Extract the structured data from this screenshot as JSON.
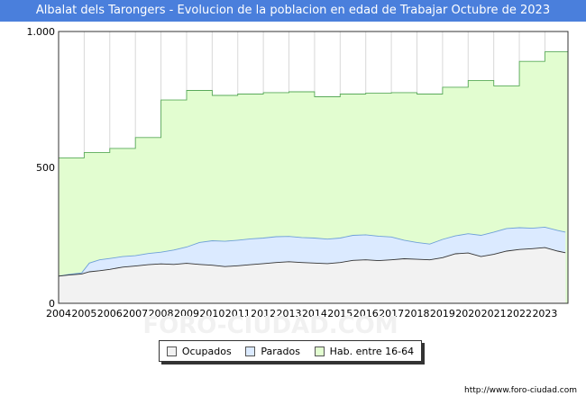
{
  "header": {
    "title": "Albalat dels Tarongers - Evolucion de la poblacion en edad de Trabajar Octubre de 2023"
  },
  "chart_data": {
    "type": "area",
    "title": "Albalat dels Tarongers - Evolucion de la poblacion en edad de Trabajar Octubre de 2023",
    "x_range": [
      2004,
      2023.9
    ],
    "ylim": [
      0,
      1000
    ],
    "y_ticks": [
      0,
      500,
      1000
    ],
    "y_tick_labels": [
      "0",
      "500",
      "1.000"
    ],
    "x_tick_labels": [
      "2004",
      "2005",
      "2006",
      "2007",
      "2008",
      "2009",
      "2010",
      "2011",
      "2012",
      "2013",
      "2014",
      "2015",
      "2016",
      "2017",
      "2018",
      "2019",
      "2020",
      "2021",
      "2022",
      "2023"
    ],
    "grid": true,
    "legend_position": "bottom",
    "series": [
      {
        "name": "Hab. entre 16-64",
        "color": "#e2fdd0",
        "stroke": "#5aaa5a",
        "annual": [
          535,
          555,
          570,
          610,
          748,
          783,
          765,
          770,
          775,
          778,
          760,
          770,
          773,
          775,
          770,
          795,
          820,
          800,
          890,
          925
        ]
      },
      {
        "name": "Parados",
        "color": "#dbeaff",
        "stroke": "#6fa0d8",
        "points": [
          [
            2004.0,
            100
          ],
          [
            2004.4,
            106
          ],
          [
            2004.9,
            112
          ],
          [
            2005.2,
            148
          ],
          [
            2005.6,
            160
          ],
          [
            2006.0,
            165
          ],
          [
            2006.5,
            172
          ],
          [
            2007.0,
            175
          ],
          [
            2007.5,
            183
          ],
          [
            2008.0,
            188
          ],
          [
            2008.5,
            196
          ],
          [
            2009.0,
            207
          ],
          [
            2009.5,
            224
          ],
          [
            2010.0,
            230
          ],
          [
            2010.5,
            228
          ],
          [
            2011.0,
            232
          ],
          [
            2011.5,
            237
          ],
          [
            2012.0,
            240
          ],
          [
            2012.5,
            245
          ],
          [
            2013.0,
            246
          ],
          [
            2013.5,
            242
          ],
          [
            2014.0,
            240
          ],
          [
            2014.5,
            236
          ],
          [
            2015.0,
            240
          ],
          [
            2015.5,
            250
          ],
          [
            2016.0,
            252
          ],
          [
            2016.5,
            247
          ],
          [
            2017.0,
            244
          ],
          [
            2017.5,
            232
          ],
          [
            2018.0,
            224
          ],
          [
            2018.5,
            218
          ],
          [
            2019.0,
            235
          ],
          [
            2019.5,
            248
          ],
          [
            2020.0,
            256
          ],
          [
            2020.5,
            250
          ],
          [
            2021.0,
            262
          ],
          [
            2021.5,
            275
          ],
          [
            2022.0,
            278
          ],
          [
            2022.5,
            276
          ],
          [
            2023.0,
            280
          ],
          [
            2023.5,
            268
          ],
          [
            2023.8,
            262
          ]
        ]
      },
      {
        "name": "Ocupados",
        "color": "#f2f2f2",
        "stroke": "#333333",
        "points": [
          [
            2004.0,
            100
          ],
          [
            2004.4,
            104
          ],
          [
            2004.9,
            108
          ],
          [
            2005.2,
            116
          ],
          [
            2005.6,
            120
          ],
          [
            2006.0,
            125
          ],
          [
            2006.5,
            133
          ],
          [
            2007.0,
            137
          ],
          [
            2007.5,
            142
          ],
          [
            2008.0,
            145
          ],
          [
            2008.5,
            143
          ],
          [
            2009.0,
            147
          ],
          [
            2009.5,
            143
          ],
          [
            2010.0,
            140
          ],
          [
            2010.5,
            135
          ],
          [
            2011.0,
            138
          ],
          [
            2011.5,
            142
          ],
          [
            2012.0,
            146
          ],
          [
            2012.5,
            150
          ],
          [
            2013.0,
            153
          ],
          [
            2013.5,
            150
          ],
          [
            2014.0,
            148
          ],
          [
            2014.5,
            146
          ],
          [
            2015.0,
            150
          ],
          [
            2015.5,
            158
          ],
          [
            2016.0,
            160
          ],
          [
            2016.5,
            157
          ],
          [
            2017.0,
            160
          ],
          [
            2017.5,
            164
          ],
          [
            2018.0,
            162
          ],
          [
            2018.5,
            160
          ],
          [
            2019.0,
            168
          ],
          [
            2019.5,
            182
          ],
          [
            2020.0,
            185
          ],
          [
            2020.5,
            172
          ],
          [
            2021.0,
            180
          ],
          [
            2021.5,
            192
          ],
          [
            2022.0,
            198
          ],
          [
            2022.5,
            201
          ],
          [
            2023.0,
            205
          ],
          [
            2023.5,
            192
          ],
          [
            2023.8,
            186
          ]
        ]
      }
    ]
  },
  "legend": {
    "items": [
      "Ocupados",
      "Parados",
      "Hab. entre 16-64"
    ]
  },
  "watermark": "FORO-CIUDAD.COM",
  "footer": {
    "url": "http://www.foro-ciudad.com"
  }
}
